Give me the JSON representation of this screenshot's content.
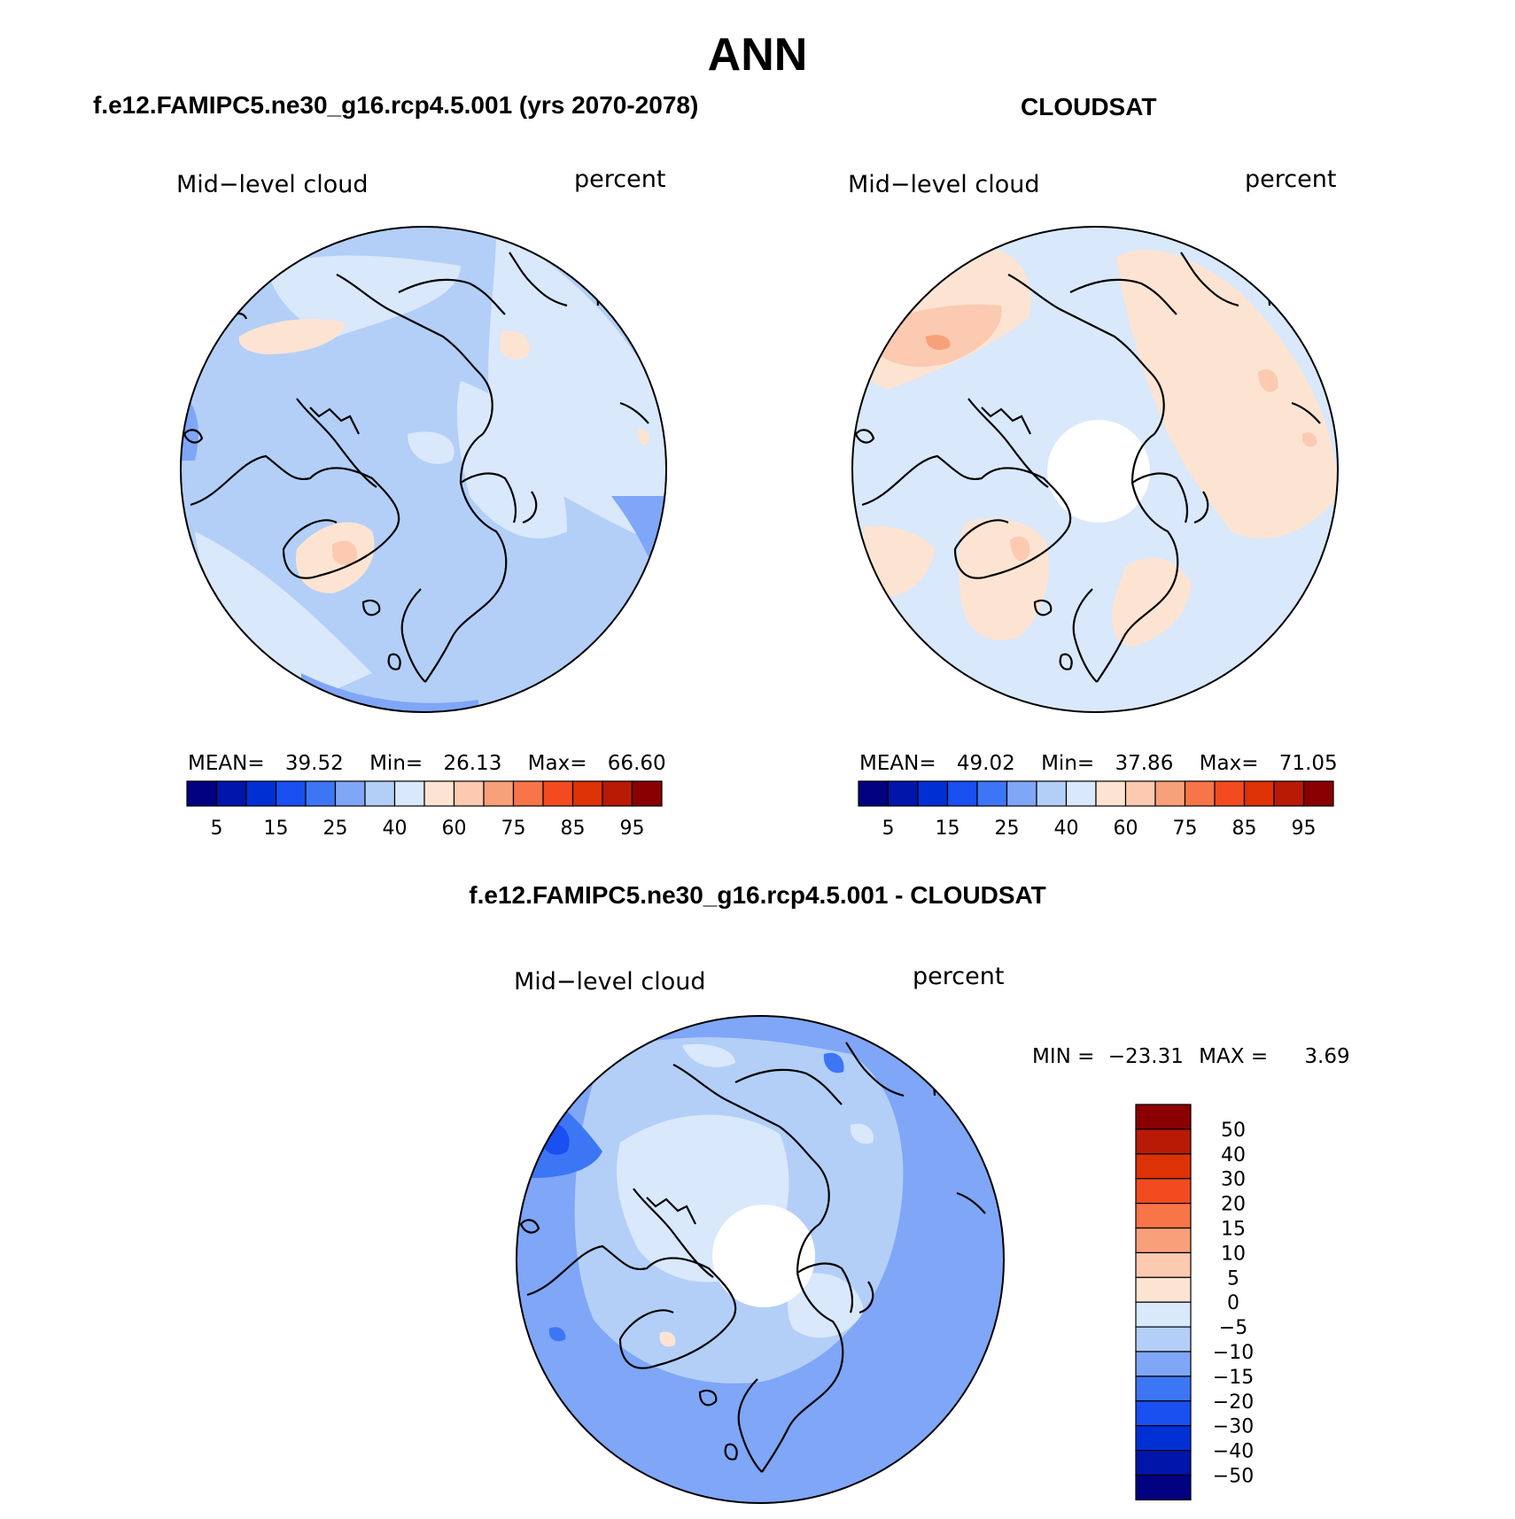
{
  "page": {
    "title": "ANN"
  },
  "panels": [
    {
      "case_title": "f.e12.FAMIPC5.ne30_g16.rcp4.5.001 (yrs 2070-2078)",
      "left_label": "Mid−level cloud",
      "right_label": "percent",
      "stats": {
        "mean_label": "MEAN=",
        "mean": "39.52",
        "min_label": "Min=",
        "min": "26.13",
        "max_label": "Max=",
        "max": "66.60"
      },
      "has_pole_hole": false,
      "base_color": "#b3cff8",
      "patches": [
        {
          "kind": "warm",
          "color": "#fde4d2",
          "desc": "siberia"
        },
        {
          "kind": "warm",
          "color": "#fbcab0",
          "desc": "greenland"
        },
        {
          "kind": "pale",
          "color": "#d9e8fb",
          "desc": "atlantic"
        }
      ]
    },
    {
      "case_title": "CLOUDSAT",
      "left_label": "Mid−level cloud",
      "right_label": "percent",
      "stats": {
        "mean_label": "MEAN=",
        "mean": "49.02",
        "min_label": "Min=",
        "min": "37.86",
        "max_label": "Max=",
        "max": "71.05"
      },
      "has_pole_hole": true,
      "base_color": "#d9e8fb",
      "patches": [
        {
          "kind": "warm",
          "color": "#fde4d2",
          "desc": "pacific"
        },
        {
          "kind": "warm",
          "color": "#fbcab0",
          "desc": "east-asia"
        }
      ]
    }
  ],
  "colorbar_abs": {
    "colors": [
      "#000080",
      "#0015aa",
      "#0030d4",
      "#1a4ff0",
      "#3d76f5",
      "#7fa6f7",
      "#b3cff8",
      "#d9e8fb",
      "#fde4d2",
      "#fbcab0",
      "#f8a07a",
      "#f77548",
      "#f24b1f",
      "#dd3206",
      "#b81a05",
      "#8a0000"
    ],
    "tick_labels": [
      "5",
      "15",
      "25",
      "40",
      "60",
      "75",
      "85",
      "95"
    ]
  },
  "diff_panel": {
    "case_title": "f.e12.FAMIPC5.ne30_g16.rcp4.5.001 - CLOUDSAT",
    "left_label": "Mid−level cloud",
    "right_label": "percent",
    "minmax": {
      "min_label": "MIN =",
      "min": "−23.31",
      "max_label": "MAX =",
      "max": "3.69"
    },
    "has_pole_hole": true
  },
  "colorbar_diff": {
    "colors": [
      "#8a0000",
      "#b81a05",
      "#dd3206",
      "#f24b1f",
      "#f77548",
      "#f8a07a",
      "#fbcab0",
      "#fde4d2",
      "#d9e8fb",
      "#b3cff8",
      "#7fa6f7",
      "#3d76f5",
      "#1a4ff0",
      "#0030d4",
      "#0015aa",
      "#000080"
    ],
    "tick_labels": [
      "50",
      "40",
      "30",
      "20",
      "15",
      "10",
      "5",
      "0",
      "−5",
      "−10",
      "−15",
      "−20",
      "−30",
      "−40",
      "−50"
    ]
  }
}
